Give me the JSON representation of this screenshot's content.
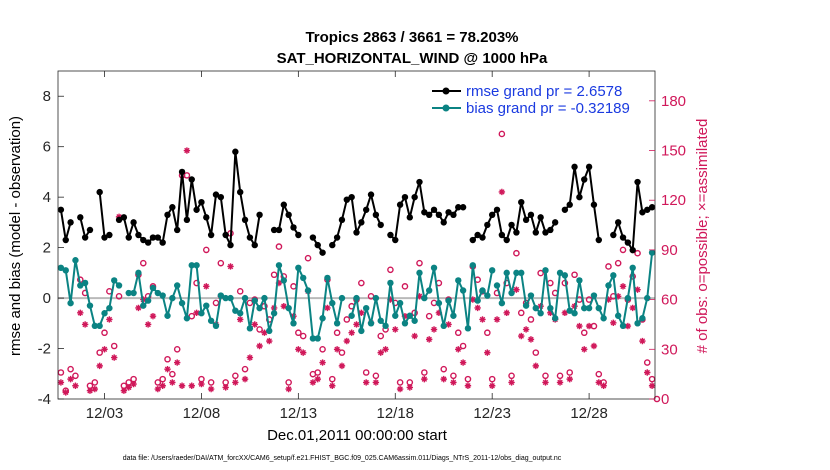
{
  "chart_data": {
    "type": "line",
    "title": "Tropics 2863 / 3661 = 78.203%",
    "subtitle": "SAT_HORIZONTAL_WIND @ 1000 hPa",
    "xlabel": "Dec.01,2011 00:00:00 start",
    "ylabel": "rmse and bias (model - observation)",
    "y2label": "# of obs: o=possible; ×=assimilated",
    "footnote": "data file: /Users/raeder/DAI/ATM_forcXX/CAM6_setup/f.e21.FHIST_BGC.f09_025.CAM6assim.011/Diags_NTrS_2011-12/obs_diag_output.nc",
    "xlim": [
      0.6,
      31.4
    ],
    "ylim": [
      -4,
      9
    ],
    "y2lim": [
      0,
      198
    ],
    "x_ticks": [
      3,
      8,
      13,
      18,
      23,
      28
    ],
    "x_tick_labels": [
      "12/03",
      "12/08",
      "12/13",
      "12/18",
      "12/23",
      "12/28"
    ],
    "y_ticks": [
      -4,
      -2,
      0,
      2,
      4,
      6,
      8
    ],
    "y_tick_labels": [
      "-4",
      "-2",
      "0",
      "2",
      "4",
      "6",
      "8"
    ],
    "y2_ticks": [
      0,
      30,
      60,
      90,
      120,
      150,
      180
    ],
    "y2_tick_labels": [
      "0",
      "30",
      "60",
      "90",
      "120",
      "150",
      "180"
    ],
    "zero_line": 0,
    "legend_location": "top-right",
    "colors": {
      "rmse": "#000000",
      "bias": "#0b8383",
      "obs": "#d0185a",
      "zero": "#b9b9b9",
      "legend_text": "#1a3ae0"
    },
    "series": [
      {
        "name": "rmse grand pr = 2.6578",
        "color": "#000000",
        "segments": [
          {
            "x": [
              0.75,
              1.0,
              1.25,
              1.5
            ],
            "y": [
              3.5,
              2.3,
              3.0,
              null
            ]
          },
          {
            "x": [
              1.75,
              2.0,
              2.25
            ],
            "y": [
              3.2,
              2.4,
              2.7
            ]
          },
          {
            "x": [
              2.75,
              3.0,
              3.25
            ],
            "y": [
              4.2,
              2.4,
              2.5
            ]
          },
          {
            "x": [
              3.75,
              4.0,
              4.25,
              4.5,
              4.75,
              5.0,
              5.25,
              5.5,
              5.75,
              6.0,
              6.25,
              6.5,
              6.75,
              7.0,
              7.25,
              7.5,
              7.75,
              8.0,
              8.25,
              8.5,
              8.75,
              9.0,
              9.25,
              9.5,
              9.75,
              10.0,
              10.25,
              10.5,
              10.75,
              11.0
            ],
            "y": [
              3.1,
              3.2,
              2.4,
              3.0,
              2.5,
              2.3,
              2.2,
              2.4,
              2.4,
              2.2,
              3.3,
              3.6,
              2.7,
              5.0,
              3.1,
              4.7,
              3.5,
              3.8,
              3.2,
              2.5,
              4.1,
              4.0,
              2.5,
              2.1,
              5.8,
              4.2,
              3.1,
              2.4,
              2.1,
              3.3
            ]
          },
          {
            "x": [
              11.75,
              12.0,
              12.25,
              12.5,
              12.75,
              13.0
            ],
            "y": [
              2.7,
              2.7,
              3.7,
              3.3,
              2.8,
              2.5
            ]
          },
          {
            "x": [
              13.75,
              14.0,
              14.25
            ],
            "y": [
              2.4,
              2.1,
              1.8
            ]
          },
          {
            "x": [
              14.75,
              15.0,
              15.25,
              15.5,
              15.75,
              16.0,
              16.25,
              16.5,
              16.75,
              17.0,
              17.25
            ],
            "y": [
              2.1,
              2.4,
              3.1,
              3.9,
              4.0,
              2.6,
              3.0,
              3.5,
              4.1,
              3.3,
              2.9
            ]
          },
          {
            "x": [
              17.75,
              18.0,
              18.25,
              18.5,
              18.75,
              19.0,
              19.25,
              19.5,
              19.75,
              20.0,
              20.25,
              20.5,
              20.75,
              21.0,
              21.25,
              21.5
            ],
            "y": [
              2.5,
              2.3,
              3.7,
              4.0,
              3.2,
              4.0,
              4.6,
              3.4,
              3.3,
              3.5,
              3.3,
              3.0,
              3.4,
              3.3,
              3.6,
              3.6
            ]
          },
          {
            "x": [
              22.0,
              22.25,
              22.5,
              22.75,
              23.0,
              23.25,
              23.5,
              23.75,
              24.0,
              24.25,
              24.5,
              24.75,
              25.0,
              25.25,
              25.5,
              25.75,
              26.0,
              26.25
            ],
            "y": [
              2.3,
              2.5,
              2.4,
              2.9,
              3.3,
              3.5,
              2.5,
              2.3,
              2.9,
              2.6,
              3.8,
              3.1,
              3.3,
              2.6,
              3.2,
              2.6,
              2.7,
              3.0
            ]
          },
          {
            "x": [
              26.75,
              27.0,
              27.25,
              27.5,
              27.75,
              28.0,
              28.25,
              28.5
            ],
            "y": [
              3.5,
              3.7,
              5.2,
              4.0,
              4.7,
              5.2,
              3.7,
              2.3
            ]
          },
          {
            "x": [
              29.25,
              29.5,
              29.75,
              30.0,
              30.25,
              30.5,
              30.75,
              31.0,
              31.25
            ],
            "y": [
              2.5,
              3.0,
              2.4,
              2.2,
              1.9,
              4.6,
              3.4,
              3.5,
              3.6
            ]
          }
        ]
      },
      {
        "name": "bias grand pr = -0.32189",
        "color": "#0b8383",
        "segments": [
          {
            "x": [
              0.75,
              1.0,
              1.25,
              1.5,
              1.75,
              2.0,
              2.25,
              2.5,
              2.75,
              3.0,
              3.25,
              3.5,
              3.75
            ],
            "y": [
              1.2,
              1.1,
              -0.2,
              1.5,
              0.5,
              0.6,
              -0.3,
              -1.1,
              -1.1,
              -0.6,
              -0.4,
              0.7,
              0.5
            ]
          },
          {
            "x": [
              4.25,
              4.5,
              4.75,
              5.0,
              5.25,
              5.5,
              5.75,
              6.0,
              6.25,
              6.5,
              6.75,
              7.0,
              7.25,
              7.5,
              7.75,
              8.0,
              8.25,
              8.5,
              8.75,
              9.0
            ],
            "y": [
              0.2,
              0.2,
              1.0,
              -0.3,
              -0.1,
              0.4,
              0.2,
              0.1,
              -0.7,
              0.0,
              0.5,
              -0.2,
              -0.8,
              1.3,
              1.3,
              -0.6,
              -0.3,
              -0.9,
              -1.1,
              0.1
            ]
          },
          {
            "x": [
              9.25,
              9.5,
              9.75,
              10.0,
              10.25,
              10.5,
              10.75,
              11.0,
              11.25,
              11.5,
              11.75,
              12.0,
              12.25,
              12.5,
              12.75,
              13.0,
              13.25,
              13.5,
              13.75,
              14.0,
              14.25,
              14.5,
              14.75,
              15.0,
              15.25
            ],
            "y": [
              0.0,
              0.0,
              -0.5,
              -0.6,
              0.0,
              -1.2,
              -0.1,
              -0.4,
              0.0,
              -1.3,
              -0.6,
              1.3,
              0.7,
              -0.4,
              -1.0,
              1.2,
              0.8,
              0.3,
              -1.6,
              -1.6,
              -0.8,
              0.8,
              -0.2,
              -1.0,
              0.0
            ]
          },
          {
            "x": [
              15.75,
              16.0,
              16.25,
              16.5,
              16.75,
              17.0,
              17.25,
              17.5,
              17.75,
              18.0,
              18.25,
              18.5,
              18.75,
              19.0,
              19.25,
              19.5,
              19.75,
              20.0,
              20.25,
              20.5,
              20.75,
              21.0,
              21.25,
              21.5,
              21.75,
              22.0,
              22.25,
              22.5,
              22.75,
              23.0
            ],
            "y": [
              -0.7,
              0.0,
              -1.3,
              -0.4,
              -1.0,
              0.0,
              -0.9,
              -1.1,
              0.6,
              -0.7,
              -0.2,
              -1.0,
              -0.7,
              -0.9,
              1.0,
              0.0,
              0.3,
              1.2,
              -0.2,
              -1.1,
              -0.1,
              -0.7,
              0.7,
              0.3,
              -1.2,
              1.3,
              -0.1,
              0.3,
              0.1,
              1.1
            ]
          },
          {
            "x": [
              23.25,
              23.5,
              23.75,
              24.0,
              24.25,
              24.5,
              24.75,
              25.0,
              25.25,
              25.5,
              25.75,
              26.0,
              26.25,
              26.5,
              26.75,
              27.0,
              27.25,
              27.5,
              27.75,
              28.0,
              28.25,
              28.5,
              28.75,
              29.0,
              29.25,
              29.5,
              29.75,
              30.0,
              30.25,
              30.5,
              30.75,
              31.0,
              31.25
            ],
            "y": [
              0.5,
              -0.2,
              1.0,
              0.2,
              1.0,
              1.0,
              -0.3,
              0.1,
              -0.4,
              -0.6,
              1.1,
              -0.4,
              -0.8,
              1.0,
              0.9,
              -0.5,
              -0.6,
              0.7,
              -0.4,
              -0.4,
              0.1,
              -0.4,
              -0.8,
              0.5,
              0.9,
              -0.7,
              -1.1,
              0.0,
              1.2,
              -1.0,
              -0.8,
              0.0,
              1.8
            ]
          }
        ]
      }
    ],
    "obs_possible": {
      "x": [
        0.75,
        1.0,
        1.25,
        1.5,
        1.75,
        2.0,
        2.25,
        2.5,
        2.75,
        3.0,
        3.25,
        3.5,
        3.75,
        4.0,
        4.25,
        4.5,
        4.75,
        5.0,
        5.25,
        5.5,
        5.75,
        6.0,
        6.25,
        6.5,
        6.75,
        7.0,
        7.25,
        7.5,
        7.75,
        8.0,
        8.25,
        8.5,
        8.75,
        9.0,
        9.25,
        9.5,
        9.75,
        10.0,
        10.25,
        10.5,
        10.75,
        11.0,
        11.25,
        11.5,
        11.75,
        12.0,
        12.25,
        12.5,
        12.75,
        13.0,
        13.25,
        13.5,
        13.75,
        14.0,
        14.25,
        14.5,
        14.75,
        15.0,
        15.25,
        15.5,
        15.75,
        16.0,
        16.25,
        16.5,
        16.75,
        17.0,
        17.25,
        17.5,
        17.75,
        18.0,
        18.25,
        18.5,
        18.75,
        19.0,
        19.25,
        19.5,
        19.75,
        20.0,
        20.25,
        20.5,
        20.75,
        21.0,
        21.25,
        21.5,
        21.75,
        22.0,
        22.25,
        22.5,
        22.75,
        23.0,
        23.25,
        23.5,
        23.75,
        24.0,
        24.25,
        24.5,
        24.75,
        25.0,
        25.25,
        25.5,
        25.75,
        26.0,
        26.25,
        26.5,
        26.75,
        27.0,
        27.25,
        27.5,
        27.75,
        28.0,
        28.25,
        28.5,
        28.75,
        29.0,
        29.25,
        29.5,
        29.75,
        30.0,
        30.25,
        30.5,
        30.75,
        31.0,
        31.25,
        31.5
      ],
      "y": [
        16,
        5,
        18,
        14,
        72,
        64,
        8,
        10,
        28,
        40,
        65,
        32,
        62,
        8,
        10,
        12,
        75,
        82,
        62,
        68,
        10,
        12,
        24,
        15,
        30,
        135,
        135,
        50,
        70,
        12,
        90,
        10,
        58,
        82,
        10,
        100,
        14,
        65,
        18,
        58,
        60,
        42,
        56,
        48,
        75,
        92,
        74,
        10,
        68,
        40,
        38,
        85,
        15,
        16,
        30,
        72,
        12,
        40,
        28,
        48,
        56,
        60,
        70,
        16,
        62,
        14,
        38,
        42,
        78,
        58,
        10,
        68,
        10,
        52,
        82,
        16,
        50,
        58,
        70,
        18,
        60,
        14,
        40,
        32,
        12,
        80,
        72,
        65,
        40,
        12,
        64,
        160,
        70,
        14,
        88,
        52,
        58,
        48,
        28,
        76,
        14,
        70,
        64,
        14,
        70,
        16,
        75,
        60,
        40,
        60,
        44,
        15,
        10,
        80,
        62,
        82,
        90,
        60,
        74,
        88,
        48,
        22,
        12,
        0
      ]
    },
    "obs_assimilated": {
      "x": [
        0.75,
        1.0,
        1.25,
        1.5,
        1.75,
        2.0,
        2.25,
        2.5,
        2.75,
        3.0,
        3.25,
        3.5,
        3.75,
        4.0,
        4.25,
        4.5,
        4.75,
        5.0,
        5.25,
        5.5,
        5.75,
        6.0,
        6.25,
        6.5,
        6.75,
        7.0,
        7.25,
        7.5,
        7.75,
        8.0,
        8.25,
        8.5,
        8.75,
        9.0,
        9.25,
        9.5,
        9.75,
        10.0,
        10.25,
        10.5,
        10.75,
        11.0,
        11.25,
        11.5,
        11.75,
        12.0,
        12.25,
        12.5,
        12.75,
        13.0,
        13.25,
        13.5,
        13.75,
        14.0,
        14.25,
        14.5,
        14.75,
        15.0,
        15.25,
        15.5,
        15.75,
        16.0,
        16.25,
        16.5,
        16.75,
        17.0,
        17.25,
        17.5,
        17.75,
        18.0,
        18.25,
        18.5,
        18.75,
        19.0,
        19.25,
        19.5,
        19.75,
        20.0,
        20.25,
        20.5,
        20.75,
        21.0,
        21.25,
        21.5,
        21.75,
        22.0,
        22.25,
        22.5,
        22.75,
        23.0,
        23.25,
        23.5,
        23.75,
        24.0,
        24.25,
        24.5,
        24.75,
        25.0,
        25.25,
        25.5,
        25.75,
        26.0,
        26.25,
        26.5,
        26.75,
        27.0,
        27.25,
        27.5,
        27.75,
        28.0,
        28.25,
        28.5,
        28.75,
        29.0,
        29.25,
        29.5,
        29.75,
        30.0,
        30.25,
        30.5,
        30.75,
        31.0,
        31.25
      ],
      "y": [
        10,
        4,
        12,
        8,
        52,
        45,
        5,
        6,
        20,
        30,
        48,
        25,
        110,
        5,
        7,
        9,
        55,
        60,
        45,
        50,
        6,
        8,
        18,
        10,
        22,
        8,
        150,
        8,
        52,
        9,
        68,
        6,
        45,
        62,
        7,
        80,
        10,
        48,
        12,
        25,
        45,
        32,
        40,
        35,
        55,
        70,
        56,
        6,
        50,
        30,
        28,
        65,
        10,
        12,
        22,
        55,
        8,
        30,
        20,
        35,
        40,
        45,
        52,
        10,
        46,
        10,
        28,
        30,
        60,
        42,
        6,
        50,
        7,
        38,
        62,
        12,
        36,
        42,
        52,
        12,
        45,
        10,
        30,
        22,
        8,
        60,
        55,
        48,
        28,
        8,
        48,
        125,
        52,
        10,
        66,
        38,
        42,
        36,
        20,
        56,
        10,
        52,
        48,
        10,
        52,
        12,
        56,
        44,
        30,
        44,
        32,
        10,
        8,
        60,
        46,
        62,
        68,
        44,
        55,
        66,
        35,
        16,
        8
      ]
    }
  }
}
